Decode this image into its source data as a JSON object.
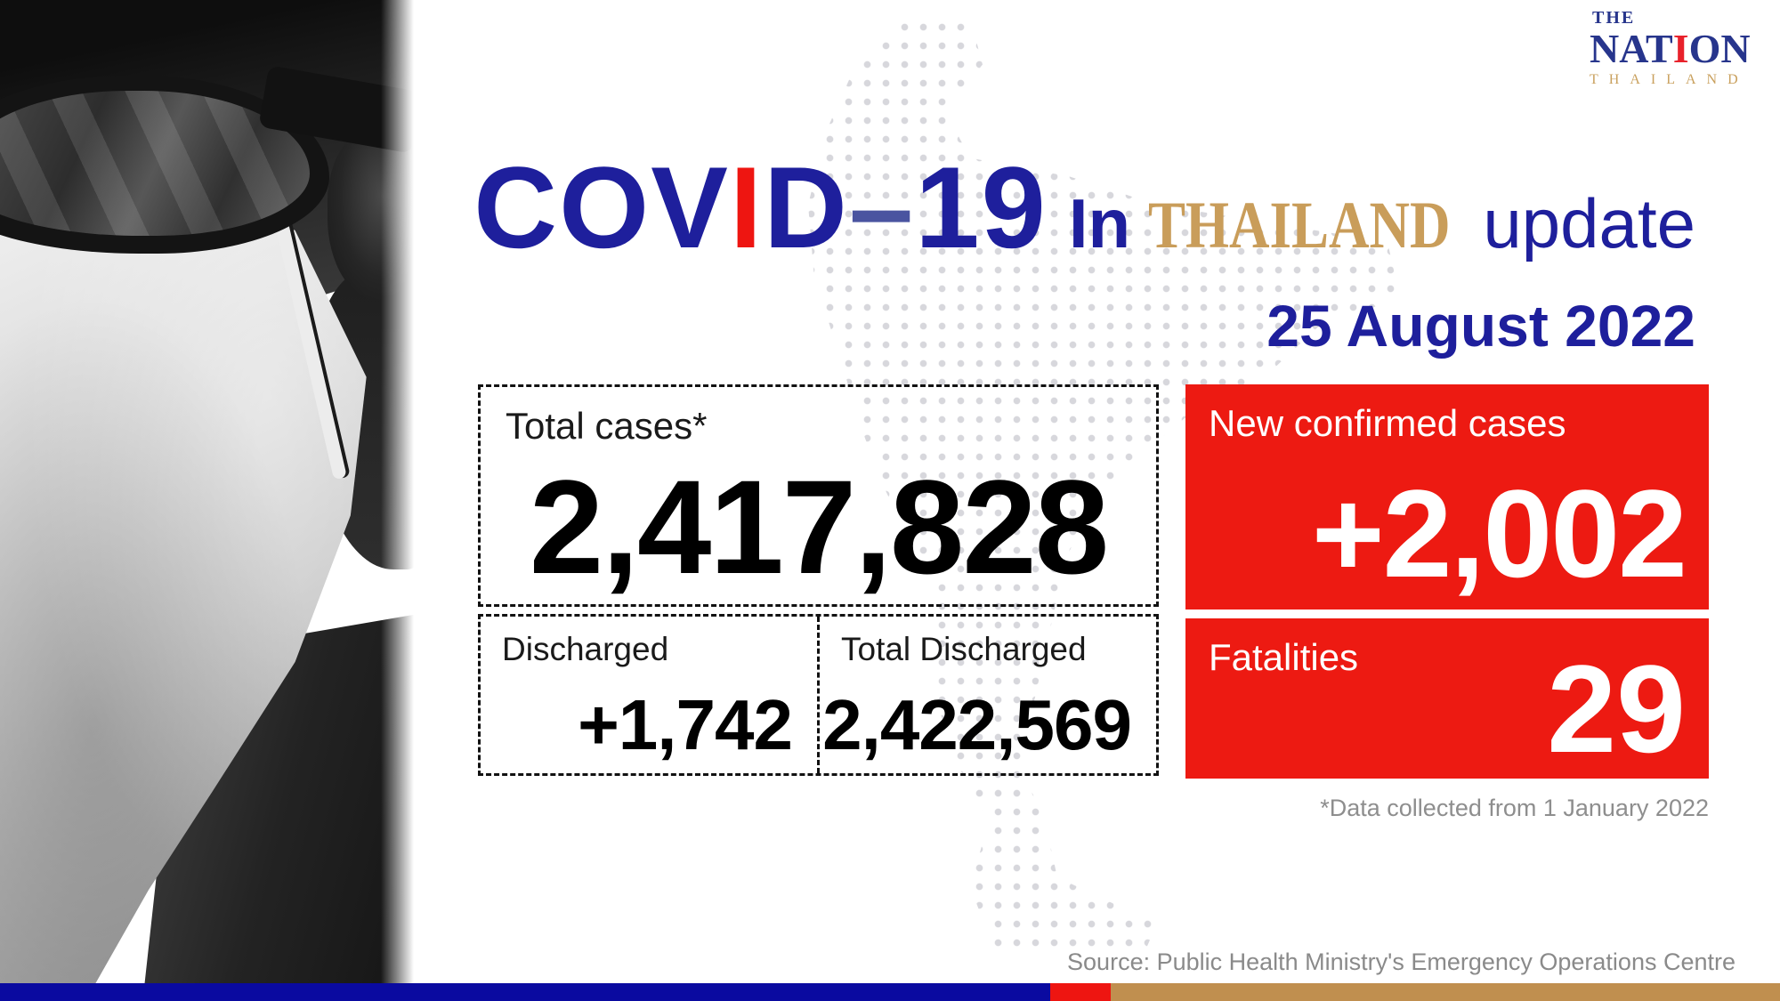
{
  "brand": {
    "the": "THE",
    "nation_a": "NAT",
    "nation_i": "I",
    "nation_b": "ON",
    "thailand": "THAILAND"
  },
  "title": {
    "covid_a": "COV",
    "covid_i": "I",
    "covid_b": "D",
    "dash": "–",
    "num": "19",
    "in_word": "In",
    "thailand": "THAILAND",
    "update_word": "update"
  },
  "date": "25 August 2022",
  "cards": {
    "total": {
      "label": "Total cases*",
      "value": "2,417,828"
    },
    "discharged": {
      "label": "Discharged",
      "value": "+1,742"
    },
    "total_discharged": {
      "label": "Total Discharged",
      "value": "2,422,569"
    },
    "new_cases": {
      "label": "New confirmed cases",
      "value": "+2,002"
    },
    "fatalities": {
      "label": "Fatalities",
      "value": "29"
    }
  },
  "footnote": "*Data collected from 1 January 2022",
  "source": "Source: Public Health Ministry's Emergency Operations Centre",
  "colors": {
    "title_blue": "#1e1f9c",
    "title_dash_blue": "#4a54a0",
    "accent_red": "#ed1a12",
    "headline_gold": "#c99d5a",
    "logo_navy": "#27358c",
    "logo_red_i": "#e8212b",
    "logo_gold": "#c9a05d",
    "bar_blue": "#0a0aa0",
    "bar_red": "#ee1511",
    "bar_gold": "#c08f4f",
    "dot_gray": "#d7d7dc",
    "note_gray": "#8e8e8e"
  },
  "chart_data": {
    "type": "table",
    "title": "COVID-19 In THAILAND update",
    "date": "25 August 2022",
    "rows": [
      {
        "label": "Total cases*",
        "value": 2417828
      },
      {
        "label": "New confirmed cases",
        "value": 2002
      },
      {
        "label": "Discharged (daily)",
        "value": 1742
      },
      {
        "label": "Total Discharged",
        "value": 2422569
      },
      {
        "label": "Fatalities",
        "value": 29
      }
    ],
    "footnote": "*Data collected from 1 January 2022",
    "source": "Source: Public Health Ministry's Emergency Operations Centre"
  }
}
